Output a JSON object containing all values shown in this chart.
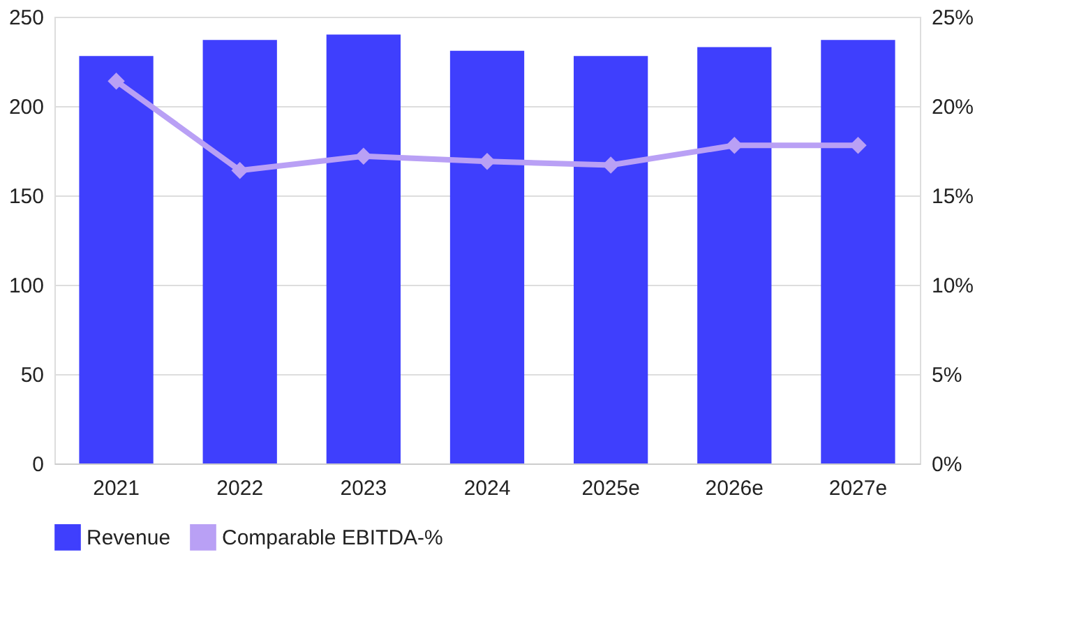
{
  "chart_data": {
    "type": "bar",
    "categories": [
      "2021",
      "2022",
      "2023",
      "2024",
      "2025e",
      "2026e",
      "2027e"
    ],
    "series": [
      {
        "name": "Revenue",
        "color": "#3f3ffd",
        "values": [
          228,
          237,
          240,
          231,
          228,
          233,
          237
        ]
      },
      {
        "name": "Comparable EBITDA-%",
        "type": "line",
        "axis": "y2",
        "color": "#b9a0f5",
        "marker": "diamond",
        "values": [
          21.4,
          16.4,
          17.2,
          16.9,
          16.7,
          17.8,
          17.8
        ]
      }
    ],
    "ylim": [
      0,
      250
    ],
    "yticks": [
      0,
      50,
      100,
      150,
      200,
      250
    ],
    "y2lim": [
      0,
      25
    ],
    "y2ticks": [
      {
        "value": 0,
        "label": "0%"
      },
      {
        "value": 5,
        "label": "5%"
      },
      {
        "value": 10,
        "label": "10%"
      },
      {
        "value": 15,
        "label": "15%"
      },
      {
        "value": 20,
        "label": "20%"
      },
      {
        "value": 25,
        "label": "25%"
      }
    ],
    "grid": "y",
    "legend": "bottom"
  }
}
